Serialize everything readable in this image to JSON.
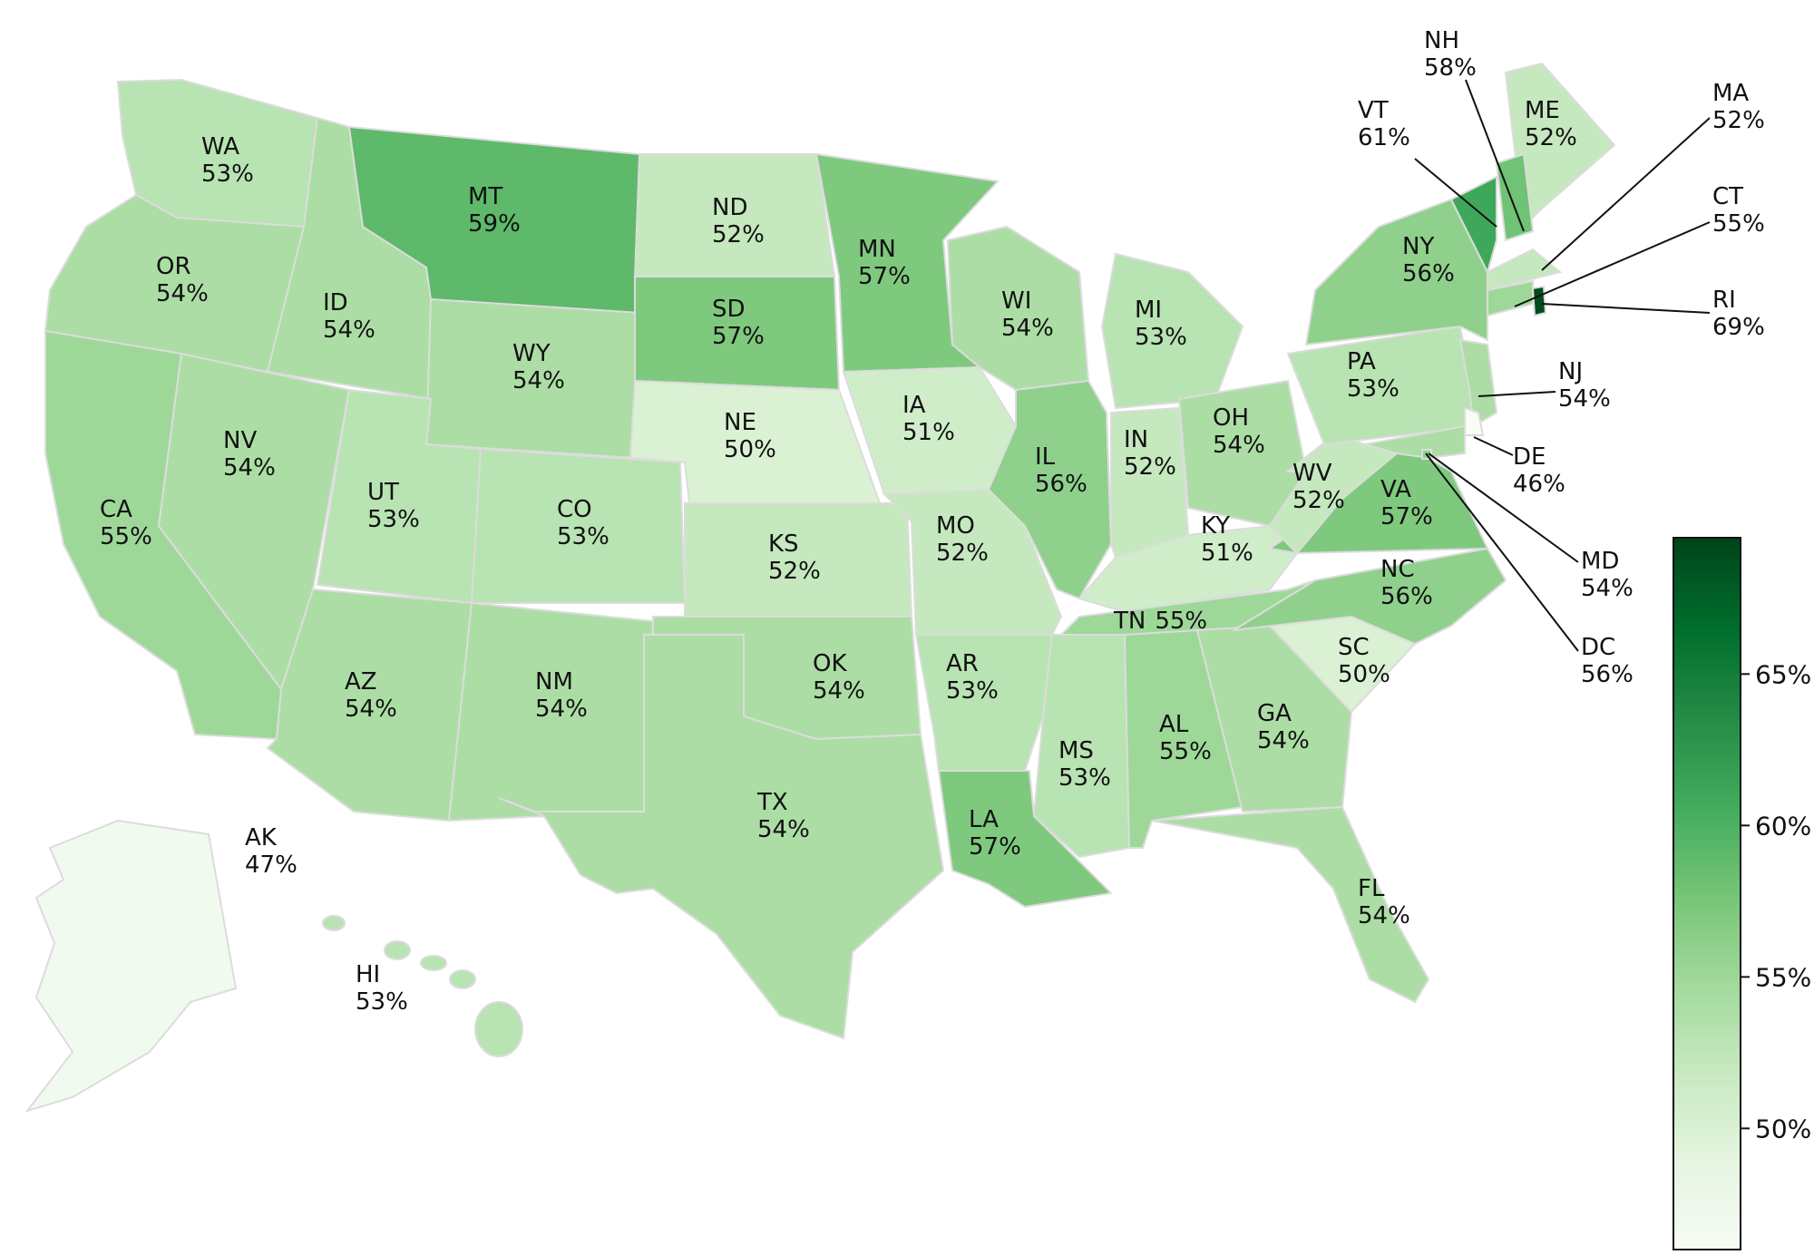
{
  "colorbar": {
    "min": 46,
    "max": 69.5,
    "ticks": [
      {
        "value": 50,
        "label": "50%"
      },
      {
        "value": 55,
        "label": "55%"
      },
      {
        "value": 60,
        "label": "60%"
      },
      {
        "value": 65,
        "label": "65%"
      }
    ],
    "color_stops": [
      "#f7fcf5",
      "#e5f5e0",
      "#c7e9c0",
      "#a1d99b",
      "#74c476",
      "#41ab5d",
      "#238b45",
      "#006d2c",
      "#00441b"
    ]
  },
  "states": [
    {
      "code": "WA",
      "pct": "53%",
      "value": 53
    },
    {
      "code": "OR",
      "pct": "54%",
      "value": 54
    },
    {
      "code": "CA",
      "pct": "55%",
      "value": 55
    },
    {
      "code": "ID",
      "pct": "54%",
      "value": 54
    },
    {
      "code": "NV",
      "pct": "54%",
      "value": 54
    },
    {
      "code": "MT",
      "pct": "59%",
      "value": 59
    },
    {
      "code": "WY",
      "pct": "54%",
      "value": 54
    },
    {
      "code": "UT",
      "pct": "53%",
      "value": 53
    },
    {
      "code": "AZ",
      "pct": "54%",
      "value": 54
    },
    {
      "code": "CO",
      "pct": "53%",
      "value": 53
    },
    {
      "code": "NM",
      "pct": "54%",
      "value": 54
    },
    {
      "code": "ND",
      "pct": "52%",
      "value": 52
    },
    {
      "code": "SD",
      "pct": "57%",
      "value": 57
    },
    {
      "code": "NE",
      "pct": "50%",
      "value": 50
    },
    {
      "code": "KS",
      "pct": "52%",
      "value": 52
    },
    {
      "code": "OK",
      "pct": "54%",
      "value": 54
    },
    {
      "code": "TX",
      "pct": "54%",
      "value": 54
    },
    {
      "code": "MN",
      "pct": "57%",
      "value": 57
    },
    {
      "code": "IA",
      "pct": "51%",
      "value": 51
    },
    {
      "code": "MO",
      "pct": "52%",
      "value": 52
    },
    {
      "code": "AR",
      "pct": "53%",
      "value": 53
    },
    {
      "code": "LA",
      "pct": "57%",
      "value": 57
    },
    {
      "code": "WI",
      "pct": "54%",
      "value": 54
    },
    {
      "code": "IL",
      "pct": "56%",
      "value": 56
    },
    {
      "code": "MI",
      "pct": "53%",
      "value": 53
    },
    {
      "code": "IN",
      "pct": "52%",
      "value": 52
    },
    {
      "code": "OH",
      "pct": "54%",
      "value": 54
    },
    {
      "code": "KY",
      "pct": "51%",
      "value": 51
    },
    {
      "code": "TN",
      "pct": "55%",
      "value": 55
    },
    {
      "code": "MS",
      "pct": "53%",
      "value": 53
    },
    {
      "code": "AL",
      "pct": "55%",
      "value": 55
    },
    {
      "code": "GA",
      "pct": "54%",
      "value": 54
    },
    {
      "code": "FL",
      "pct": "54%",
      "value": 54
    },
    {
      "code": "SC",
      "pct": "50%",
      "value": 50
    },
    {
      "code": "NC",
      "pct": "56%",
      "value": 56
    },
    {
      "code": "VA",
      "pct": "57%",
      "value": 57
    },
    {
      "code": "WV",
      "pct": "52%",
      "value": 52
    },
    {
      "code": "PA",
      "pct": "53%",
      "value": 53
    },
    {
      "code": "NY",
      "pct": "56%",
      "value": 56
    },
    {
      "code": "ME",
      "pct": "52%",
      "value": 52
    },
    {
      "code": "NH",
      "pct": "58%",
      "value": 58
    },
    {
      "code": "VT",
      "pct": "61%",
      "value": 61
    },
    {
      "code": "MA",
      "pct": "52%",
      "value": 52
    },
    {
      "code": "CT",
      "pct": "55%",
      "value": 55
    },
    {
      "code": "RI",
      "pct": "69%",
      "value": 69
    },
    {
      "code": "NJ",
      "pct": "54%",
      "value": 54
    },
    {
      "code": "DE",
      "pct": "46%",
      "value": 46
    },
    {
      "code": "MD",
      "pct": "54%",
      "value": 54
    },
    {
      "code": "DC",
      "pct": "56%",
      "value": 56
    },
    {
      "code": "AK",
      "pct": "47%",
      "value": 47
    },
    {
      "code": "HI",
      "pct": "53%",
      "value": 53
    }
  ]
}
